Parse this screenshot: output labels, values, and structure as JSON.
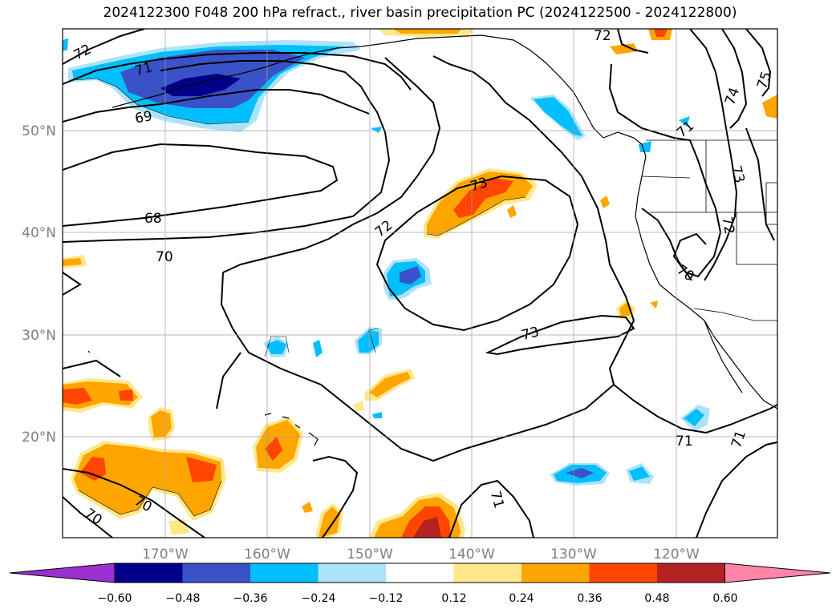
{
  "title": "2024122300 F048 200 hPa refract., river basin precipitation PC (2024122500 - 2024122800)",
  "map": {
    "lat_labels": [
      "50°N",
      "40°N",
      "30°N",
      "20°N"
    ],
    "lon_labels": [
      "170°W",
      "160°W",
      "150°W",
      "140°W",
      "130°W",
      "120°W"
    ],
    "contour_labels": [
      "72",
      "71",
      "69",
      "68",
      "70",
      "72",
      "73",
      "73",
      "71",
      "71",
      "70",
      "70",
      "71",
      "70",
      "72",
      "75",
      "74",
      "73",
      "71",
      "72"
    ]
  },
  "colorbar": {
    "ticks": [
      "−0.60",
      "−0.48",
      "−0.36",
      "−0.24",
      "−0.12",
      "0.12",
      "0.24",
      "0.36",
      "0.48",
      "0.60"
    ],
    "colors": [
      "#9b30d0",
      "#00008b",
      "#3a52c8",
      "#00bfff",
      "#ade3fa",
      "#ffffff",
      "#ffe88a",
      "#ffa500",
      "#ff4500",
      "#b22222",
      "#ff85a8"
    ]
  }
}
